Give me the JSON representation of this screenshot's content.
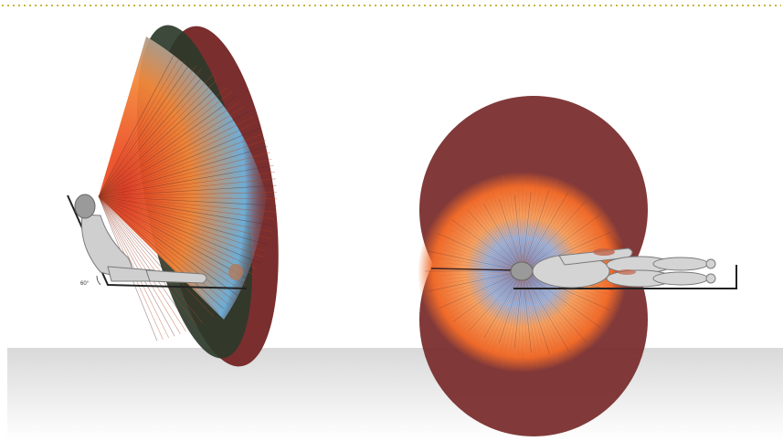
{
  "colors": {
    "background": "#ffffff",
    "floor_top": "#dcdcdc",
    "floor_bottom": "#ffffff",
    "border_dots": "#c9b640",
    "envelope_dark": "#7a2e2e",
    "envelope_green": "#2b3a2a",
    "ray_red": "#e8341c",
    "ray_orange": "#f4893a",
    "ray_blue": "#6fb4e0",
    "figure_fill": "#cfcfcf",
    "figure_stroke": "#7a7a7a",
    "seat_line": "#222222"
  },
  "figures": {
    "seated": {
      "recline_angle_label": "60°"
    }
  }
}
